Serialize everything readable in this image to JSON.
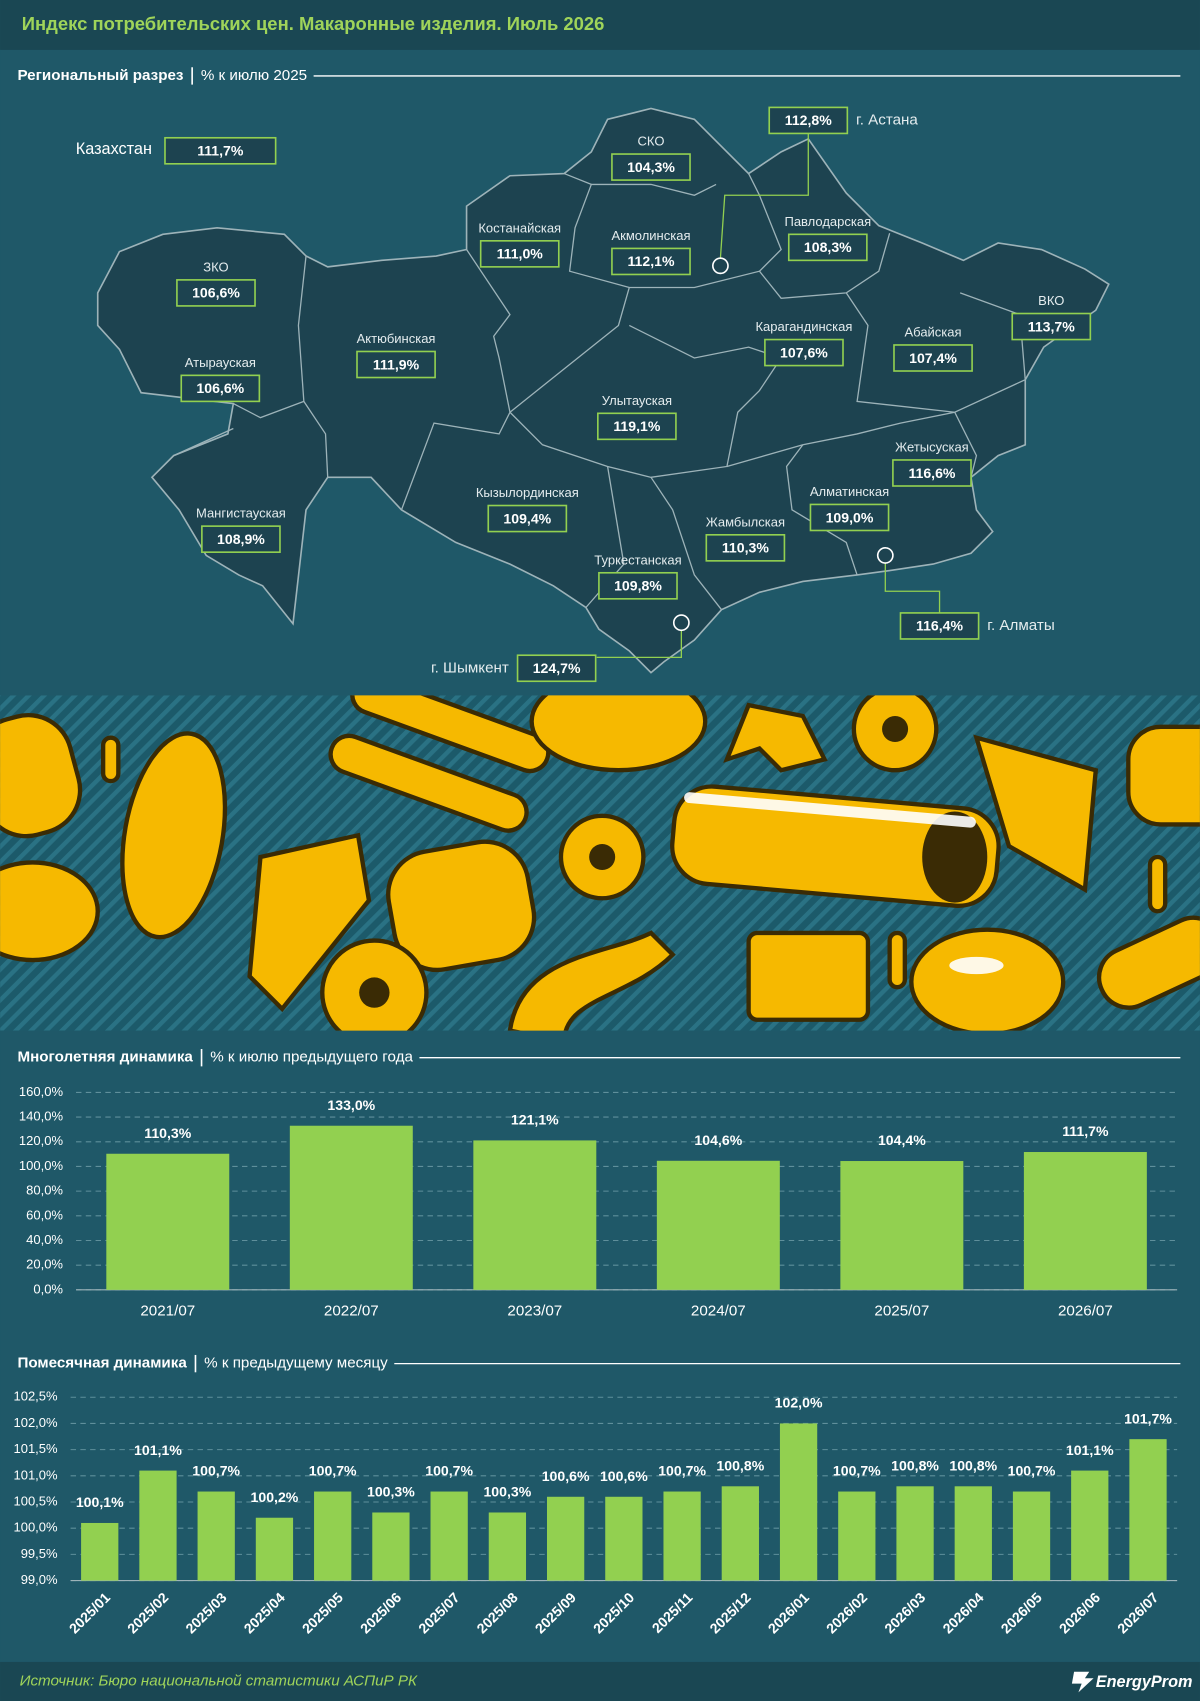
{
  "header": {
    "title": "Индекс потребительских цен. Макаронные изделия. Июль 2026"
  },
  "map": {
    "title": "Региональный разрез",
    "subtitle": "% к июлю 2025",
    "country": {
      "name": "Казахстан",
      "value": 111.7,
      "value_label": "111,7%"
    },
    "regions": [
      {
        "name": "г. Астана",
        "value": 112.8,
        "value_label": "112,8%"
      },
      {
        "name": "СКО",
        "value": 104.3,
        "value_label": "104,3%"
      },
      {
        "name": "Костанайская",
        "value": 111.0,
        "value_label": "111,0%"
      },
      {
        "name": "Акмолинская",
        "value": 112.1,
        "value_label": "112,1%"
      },
      {
        "name": "Павлодарская",
        "value": 108.3,
        "value_label": "108,3%"
      },
      {
        "name": "ЗКО",
        "value": 106.6,
        "value_label": "106,6%"
      },
      {
        "name": "Актюбинская",
        "value": 111.9,
        "value_label": "111,9%"
      },
      {
        "name": "Атырауская",
        "value": 106.6,
        "value_label": "106,6%"
      },
      {
        "name": "Карагандинская",
        "value": 107.6,
        "value_label": "107,6%"
      },
      {
        "name": "Абайская",
        "value": 107.4,
        "value_label": "107,4%"
      },
      {
        "name": "ВКО",
        "value": 113.7,
        "value_label": "113,7%"
      },
      {
        "name": "Улытауская",
        "value": 119.1,
        "value_label": "119,1%"
      },
      {
        "name": "Жетысуская",
        "value": 116.6,
        "value_label": "116,6%"
      },
      {
        "name": "Кызылординская",
        "value": 109.4,
        "value_label": "109,4%"
      },
      {
        "name": "Мангистауская",
        "value": 108.9,
        "value_label": "108,9%"
      },
      {
        "name": "Алматинская",
        "value": 109.0,
        "value_label": "109,0%"
      },
      {
        "name": "Жамбылская",
        "value": 110.3,
        "value_label": "110,3%"
      },
      {
        "name": "Туркестанская",
        "value": 109.8,
        "value_label": "109,8%"
      },
      {
        "name": "г. Алматы",
        "value": 116.4,
        "value_label": "116,4%"
      },
      {
        "name": "г. Шымкент",
        "value": 124.7,
        "value_label": "124,7%"
      }
    ]
  },
  "chart_data": [
    {
      "type": "bar",
      "title": "Многолетняя динамика",
      "subtitle": "% к июлю предыдущего года",
      "categories": [
        "2021/07",
        "2022/07",
        "2023/07",
        "2024/07",
        "2025/07",
        "2026/07"
      ],
      "values": [
        110.3,
        133.0,
        121.1,
        104.6,
        104.4,
        111.7
      ],
      "value_labels": [
        "110,3%",
        "133,0%",
        "121,1%",
        "104,6%",
        "104,4%",
        "111,7%"
      ],
      "color": "#92d050",
      "ylim": [
        0,
        160
      ],
      "yticks": [
        {
          "value": 0,
          "label": "0,0%"
        },
        {
          "value": 20,
          "label": "20,0%"
        },
        {
          "value": 40,
          "label": "40,0%"
        },
        {
          "value": 60,
          "label": "60,0%"
        },
        {
          "value": 80,
          "label": "80,0%"
        },
        {
          "value": 100,
          "label": "100,0%"
        },
        {
          "value": 120,
          "label": "120,0%"
        },
        {
          "value": 140,
          "label": "140,0%"
        },
        {
          "value": 160,
          "label": "160,0%"
        }
      ],
      "grid": true
    },
    {
      "type": "bar",
      "title": "Помесячная динамика",
      "subtitle": "% к предыдущему месяцу",
      "categories": [
        "2025/01",
        "2025/02",
        "2025/03",
        "2025/04",
        "2025/05",
        "2025/06",
        "2025/07",
        "2025/08",
        "2025/09",
        "2025/10",
        "2025/11",
        "2025/12",
        "2026/01",
        "2026/02",
        "2026/03",
        "2026/04",
        "2026/05",
        "2026/06",
        "2026/07"
      ],
      "values": [
        100.1,
        101.1,
        100.7,
        100.2,
        100.7,
        100.3,
        100.7,
        100.3,
        100.6,
        100.6,
        100.7,
        100.8,
        102.0,
        100.7,
        100.8,
        100.8,
        100.7,
        101.1,
        101.7
      ],
      "value_labels": [
        "100,1%",
        "101,1%",
        "100,7%",
        "100,2%",
        "100,7%",
        "100,3%",
        "100,7%",
        "100,3%",
        "100,6%",
        "100,6%",
        "100,7%",
        "100,8%",
        "102,0%",
        "100,7%",
        "100,8%",
        "100,8%",
        "100,7%",
        "101,1%",
        "101,7%"
      ],
      "color": "#92d050",
      "ylim": [
        99,
        102.5
      ],
      "yticks": [
        {
          "value": 99,
          "label": "99,0%"
        },
        {
          "value": 99.5,
          "label": "99,5%"
        },
        {
          "value": 100,
          "label": "100,0%"
        },
        {
          "value": 100.5,
          "label": "100,5%"
        },
        {
          "value": 101,
          "label": "101,0%"
        },
        {
          "value": 101.5,
          "label": "101,5%"
        },
        {
          "value": 102,
          "label": "102,0%"
        },
        {
          "value": 102.5,
          "label": "102,5%"
        }
      ],
      "grid": true
    }
  ],
  "footer": {
    "source": "Источник: Бюро национальной статистики АСПиР РК",
    "logo": "EnergyProm"
  }
}
